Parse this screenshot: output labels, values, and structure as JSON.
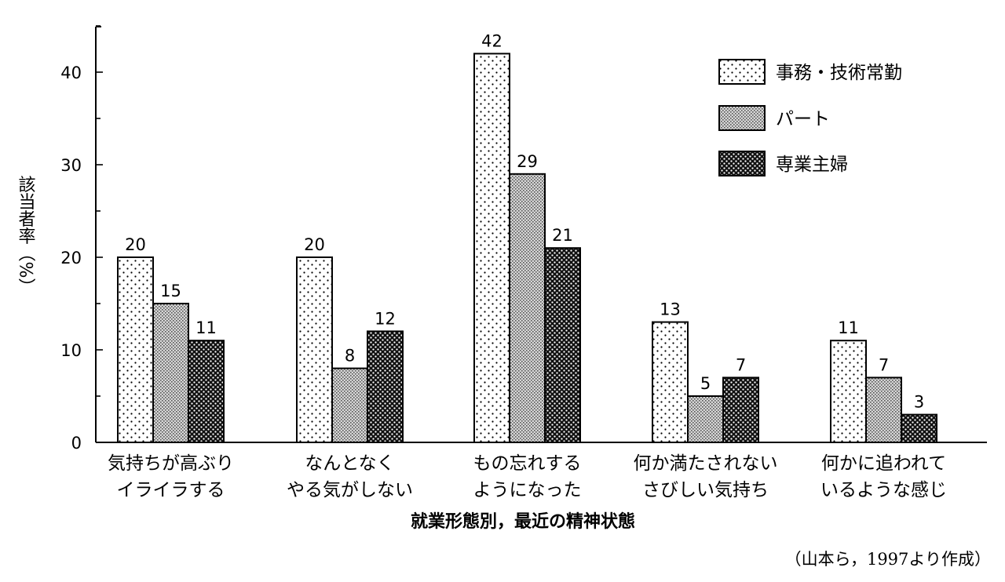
{
  "chart_data": {
    "type": "bar",
    "categories": [
      [
        "気持ちが高ぶり",
        "イライラする"
      ],
      [
        "なんとなく",
        "やる気がしない"
      ],
      [
        "もの忘れする",
        "ようになった"
      ],
      [
        "何か満たされない",
        "さびしい気持ち"
      ],
      [
        "何かに追われて",
        "いるような感じ"
      ]
    ],
    "series": [
      {
        "name": "事務・技術常勤",
        "values": [
          20,
          20,
          42,
          13,
          11
        ]
      },
      {
        "name": "パート",
        "values": [
          15,
          8,
          29,
          5,
          7
        ]
      },
      {
        "name": "専業主婦",
        "values": [
          11,
          12,
          21,
          7,
          3
        ]
      }
    ],
    "xlabel": "就業形態別，最近の精神状態",
    "ylabel": "該当者率（%）",
    "ylim": [
      0,
      45
    ],
    "yticks": [
      0,
      10,
      20,
      30,
      40
    ],
    "legend_position": "top-right",
    "grid": false
  },
  "source": "（山本ら，1997より作成）"
}
